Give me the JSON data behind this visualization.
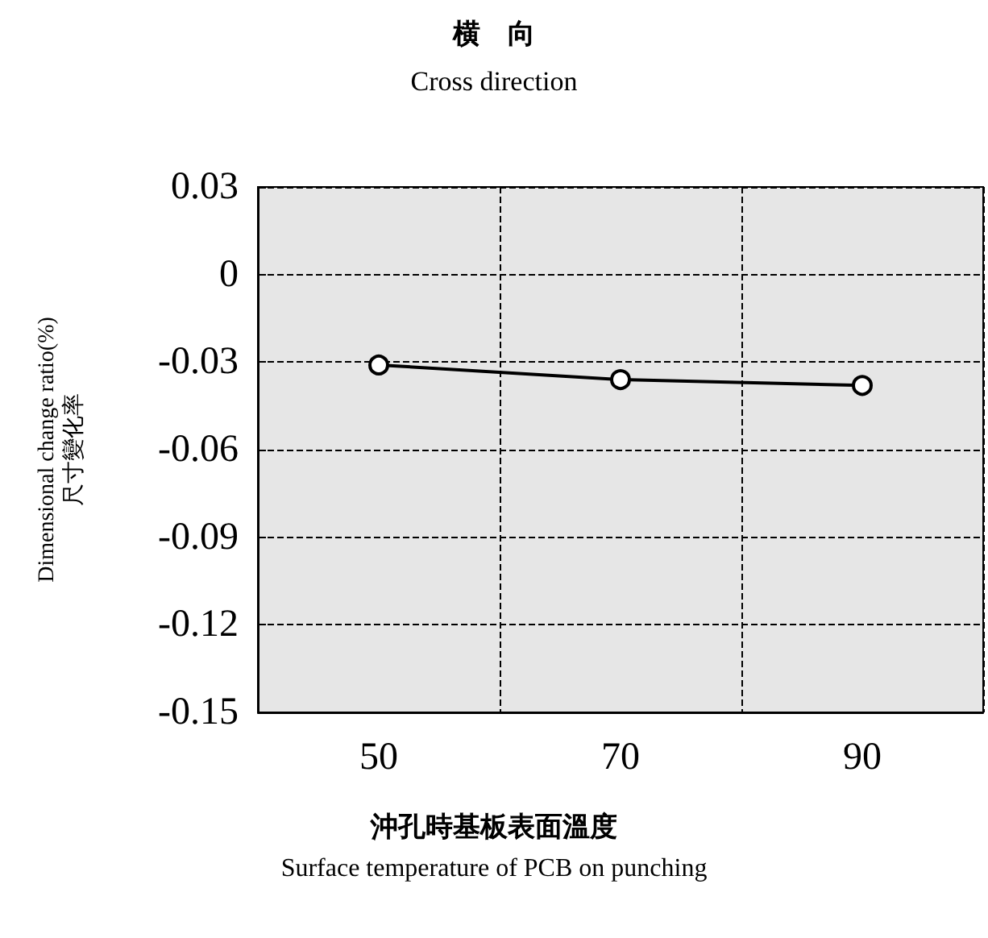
{
  "chart_data": {
    "type": "line",
    "title": "横　向",
    "subtitle": "Cross direction",
    "xlabel": "沖孔時基板表面溫度\nSurface temperature of PCB on punching",
    "ylabel": "Dimensional change ratio(%)\n尺寸變化率",
    "categories": [
      "50",
      "70",
      "90"
    ],
    "series": [
      {
        "color": "#000000",
        "values": [
          -0.031,
          -0.036,
          -0.038
        ]
      }
    ],
    "ylim": [
      -0.15,
      0.03
    ],
    "yticks": [
      -0.15,
      -0.12,
      -0.09,
      -0.06,
      -0.03,
      0,
      0.03
    ],
    "grid": true,
    "marker": "circle",
    "line_style": "solid"
  }
}
